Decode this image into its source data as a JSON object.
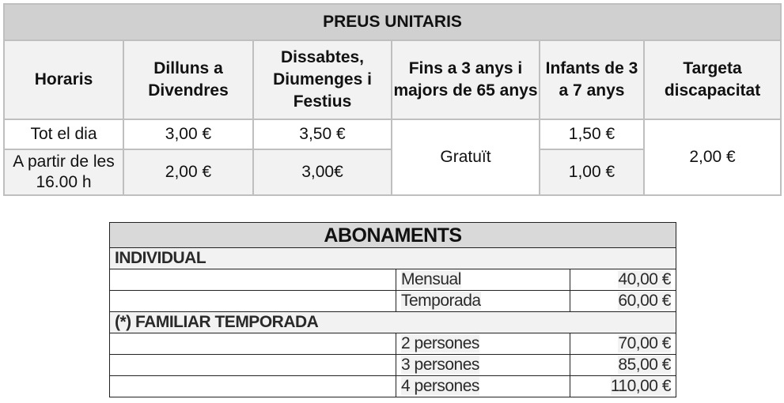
{
  "preus_unitaris": {
    "title": "PREUS UNITARIS",
    "headers": [
      "Horaris",
      "Dilluns a Divendres",
      "Dissabtes, Diumenges i Festius",
      "Fins a 3 anys i majors de 65 anys",
      "Infants de 3 a 7 anys",
      "Targeta discapacitat"
    ],
    "rows": [
      {
        "horari": "Tot el dia",
        "laborable": "3,00 €",
        "festiu": "3,50 €",
        "infants": "1,50 €"
      },
      {
        "horari": "A partir de les 16.00 h",
        "laborable": "2,00 €",
        "festiu": "3,00€",
        "infants": "1,00 €"
      }
    ],
    "gratuit": "Gratuït",
    "discapacitat": "2,00 €"
  },
  "abonaments": {
    "title": "ABONAMENTS",
    "sections": [
      {
        "label": "INDIVIDUAL",
        "items": [
          {
            "name": "Mensual",
            "price": "40,00 €"
          },
          {
            "name": "Temporada",
            "price": "60,00 €"
          }
        ]
      },
      {
        "label": "(*) FAMILIAR TEMPORADA",
        "items": [
          {
            "name": "2 persones",
            "price": "70,00 €"
          },
          {
            "name": "3 persones",
            "price": "85,00 €"
          },
          {
            "name": "4 persones",
            "price": "110,00 €"
          }
        ]
      }
    ]
  }
}
